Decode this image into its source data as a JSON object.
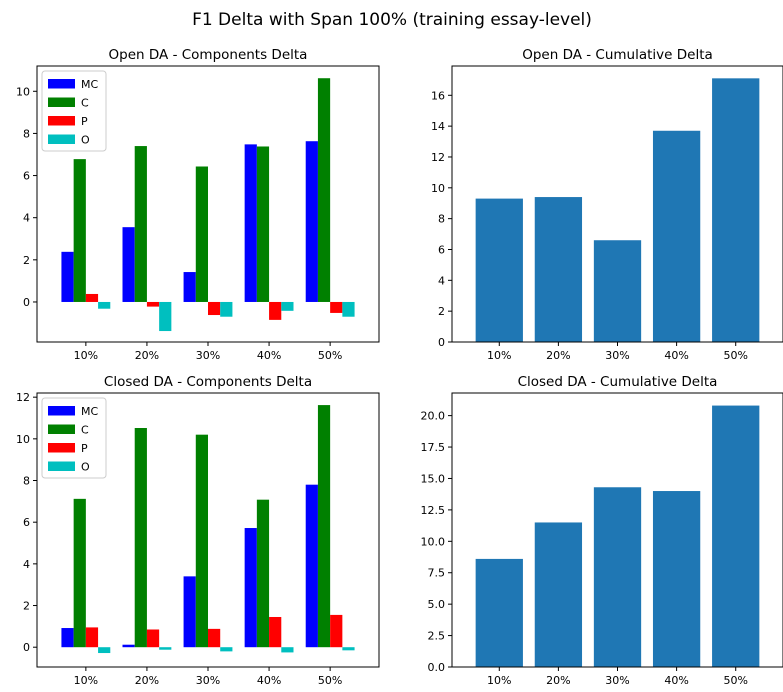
{
  "figure": {
    "title": "F1 Delta with Span 100% (training essay-level)"
  },
  "chart_data": [
    {
      "type": "bar",
      "title": "Open DA - Components Delta",
      "categories": [
        "10%",
        "20%",
        "30%",
        "40%",
        "50%"
      ],
      "ylim": [
        -1.9,
        11.2
      ],
      "yticks": [
        0,
        2,
        4,
        6,
        8,
        10
      ],
      "legend": "upper-left",
      "series": [
        {
          "name": "MC",
          "color": "#0000ff",
          "values": [
            2.38,
            3.55,
            1.42,
            7.48,
            7.63
          ]
        },
        {
          "name": "C",
          "color": "#008000",
          "values": [
            6.78,
            7.4,
            6.43,
            7.38,
            10.62
          ]
        },
        {
          "name": "P",
          "color": "#ff0000",
          "values": [
            0.38,
            -0.22,
            -0.62,
            -0.85,
            -0.52
          ]
        },
        {
          "name": "O",
          "color": "#00bfbf",
          "values": [
            -0.32,
            -1.38,
            -0.7,
            -0.42,
            -0.7
          ]
        }
      ]
    },
    {
      "type": "bar",
      "title": "Open DA - Cumulative Delta",
      "categories": [
        "10%",
        "20%",
        "30%",
        "40%",
        "50%"
      ],
      "ylim": [
        0,
        17.9
      ],
      "yticks": [
        0,
        2,
        4,
        6,
        8,
        10,
        12,
        14,
        16
      ],
      "color": "#1f77b4",
      "values": [
        9.3,
        9.4,
        6.6,
        13.7,
        17.1
      ]
    },
    {
      "type": "bar",
      "title": "Closed DA - Components Delta",
      "categories": [
        "10%",
        "20%",
        "30%",
        "40%",
        "50%"
      ],
      "ylim": [
        -0.95,
        12.2
      ],
      "yticks": [
        0,
        2,
        4,
        6,
        8,
        10,
        12
      ],
      "legend": "upper-left",
      "series": [
        {
          "name": "MC",
          "color": "#0000ff",
          "values": [
            0.92,
            0.12,
            3.4,
            5.72,
            7.8
          ]
        },
        {
          "name": "C",
          "color": "#008000",
          "values": [
            7.12,
            10.52,
            10.2,
            7.08,
            11.62
          ]
        },
        {
          "name": "P",
          "color": "#ff0000",
          "values": [
            0.95,
            0.85,
            0.88,
            1.45,
            1.55
          ]
        },
        {
          "name": "O",
          "color": "#00bfbf",
          "values": [
            -0.28,
            -0.12,
            -0.2,
            -0.25,
            -0.15
          ]
        }
      ]
    },
    {
      "type": "bar",
      "title": "Closed DA - Cumulative Delta",
      "categories": [
        "10%",
        "20%",
        "30%",
        "40%",
        "50%"
      ],
      "ylim": [
        0,
        21.8
      ],
      "yticks": [
        "0.0",
        "2.5",
        "5.0",
        "7.5",
        "10.0",
        "12.5",
        "15.0",
        "17.5",
        "20.0"
      ],
      "color": "#1f77b4",
      "values": [
        8.6,
        11.5,
        14.3,
        14.0,
        20.8
      ]
    }
  ]
}
